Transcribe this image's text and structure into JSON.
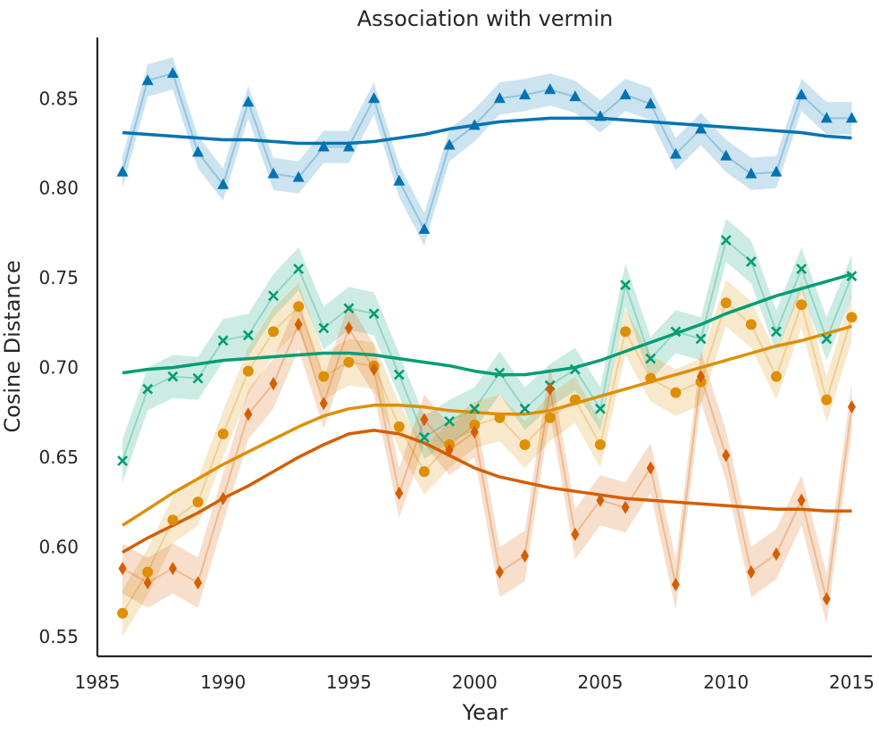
{
  "chart_data": {
    "type": "line",
    "title": "Association with vermin",
    "xlabel": "Year",
    "ylabel": "Cosine Distance",
    "xlim": [
      1985,
      2015.8
    ],
    "ylim": [
      0.539,
      0.884
    ],
    "xticks": [
      "1985",
      "1990",
      "1995",
      "2000",
      "2005",
      "2010",
      "2015"
    ],
    "yticks": [
      "0.55",
      "0.60",
      "0.65",
      "0.70",
      "0.75",
      "0.80",
      "0.85"
    ],
    "grid": false,
    "legend": "none",
    "x": [
      1986,
      1987,
      1988,
      1989,
      1990,
      1991,
      1992,
      1993,
      1994,
      1995,
      1996,
      1997,
      1998,
      1999,
      2000,
      2001,
      2002,
      2003,
      2004,
      2005,
      2006,
      2007,
      2008,
      2009,
      2010,
      2011,
      2012,
      2013,
      2014,
      2015
    ],
    "series": [
      {
        "name": "blue",
        "marker": "triangle",
        "color": "#0173b2",
        "values": [
          0.809,
          0.86,
          0.864,
          0.82,
          0.802,
          0.848,
          0.808,
          0.806,
          0.823,
          0.823,
          0.85,
          0.804,
          0.777,
          0.824,
          0.835,
          0.85,
          0.852,
          0.855,
          0.851,
          0.84,
          0.852,
          0.847,
          0.819,
          0.833,
          0.818,
          0.808,
          0.809,
          0.852,
          0.839,
          0.839
        ],
        "band": 0.009,
        "trend": [
          0.831,
          0.83,
          0.829,
          0.828,
          0.827,
          0.827,
          0.826,
          0.825,
          0.825,
          0.825,
          0.826,
          0.828,
          0.83,
          0.833,
          0.835,
          0.837,
          0.838,
          0.839,
          0.839,
          0.839,
          0.838,
          0.837,
          0.836,
          0.835,
          0.834,
          0.833,
          0.832,
          0.831,
          0.829,
          0.828
        ]
      },
      {
        "name": "green",
        "marker": "x",
        "color": "#029e73",
        "values": [
          0.648,
          0.688,
          0.695,
          0.694,
          0.715,
          0.718,
          0.74,
          0.755,
          0.722,
          0.733,
          0.73,
          0.696,
          0.661,
          0.67,
          0.677,
          0.697,
          0.677,
          0.69,
          0.699,
          0.677,
          0.746,
          0.705,
          0.72,
          0.716,
          0.771,
          0.759,
          0.72,
          0.755,
          0.716,
          0.751
        ],
        "band": 0.012,
        "trend": [
          0.697,
          0.699,
          0.7,
          0.702,
          0.704,
          0.705,
          0.706,
          0.707,
          0.708,
          0.708,
          0.707,
          0.705,
          0.703,
          0.701,
          0.698,
          0.696,
          0.696,
          0.698,
          0.7,
          0.704,
          0.709,
          0.714,
          0.719,
          0.724,
          0.73,
          0.735,
          0.74,
          0.744,
          0.748,
          0.752
        ]
      },
      {
        "name": "orange",
        "marker": "circle",
        "color": "#de8f05",
        "values": [
          0.563,
          0.586,
          0.615,
          0.625,
          0.663,
          0.698,
          0.72,
          0.734,
          0.695,
          0.703,
          0.701,
          0.667,
          0.642,
          0.657,
          0.668,
          0.672,
          0.657,
          0.672,
          0.682,
          0.657,
          0.72,
          0.694,
          0.686,
          0.692,
          0.736,
          0.724,
          0.695,
          0.735,
          0.682,
          0.728
        ],
        "band": 0.013,
        "trend": [
          0.612,
          0.621,
          0.63,
          0.638,
          0.646,
          0.653,
          0.66,
          0.667,
          0.673,
          0.677,
          0.679,
          0.679,
          0.678,
          0.676,
          0.675,
          0.674,
          0.674,
          0.676,
          0.68,
          0.684,
          0.688,
          0.692,
          0.696,
          0.7,
          0.704,
          0.708,
          0.712,
          0.715,
          0.719,
          0.723
        ]
      },
      {
        "name": "vermillion",
        "marker": "diamond",
        "color": "#d55e00",
        "values": [
          0.588,
          0.58,
          0.588,
          0.58,
          0.627,
          0.674,
          0.691,
          0.724,
          0.68,
          0.722,
          0.699,
          0.63,
          0.671,
          0.654,
          0.664,
          0.586,
          0.595,
          0.688,
          0.607,
          0.626,
          0.622,
          0.644,
          0.579,
          0.695,
          0.651,
          0.586,
          0.596,
          0.626,
          0.571,
          0.678
        ],
        "band": 0.014,
        "trend": [
          0.597,
          0.605,
          0.612,
          0.619,
          0.627,
          0.634,
          0.642,
          0.65,
          0.657,
          0.663,
          0.665,
          0.663,
          0.658,
          0.651,
          0.644,
          0.639,
          0.636,
          0.633,
          0.631,
          0.629,
          0.627,
          0.626,
          0.625,
          0.624,
          0.623,
          0.622,
          0.621,
          0.621,
          0.62,
          0.62
        ]
      }
    ]
  }
}
